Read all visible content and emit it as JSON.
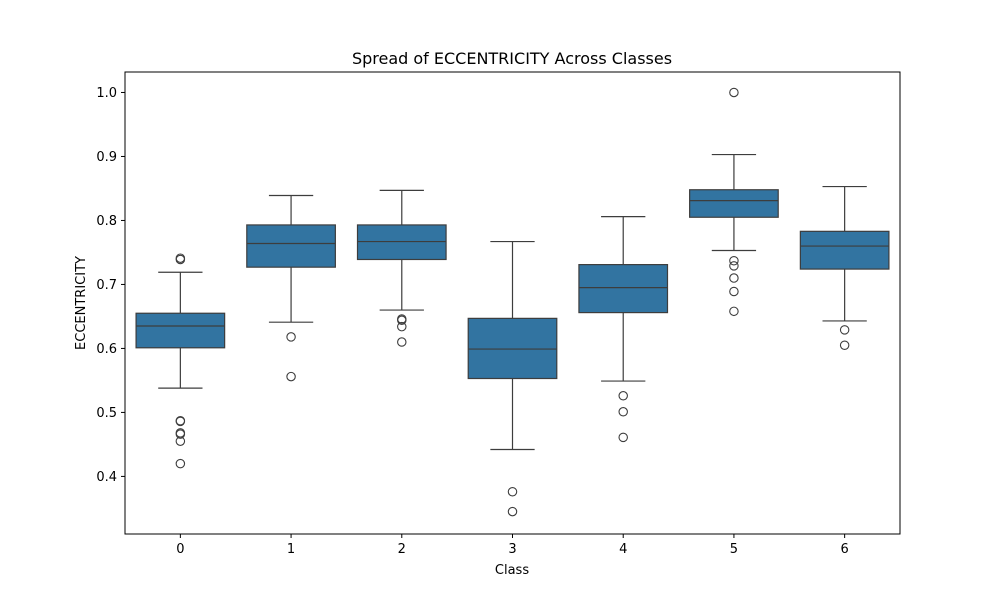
{
  "chart_data": {
    "type": "box",
    "title": "Spread of ECCENTRICITY Across Classes",
    "xlabel": "Class",
    "ylabel": "ECCENTRICITY",
    "categories": [
      "0",
      "1",
      "2",
      "3",
      "4",
      "5",
      "6"
    ],
    "y_ticks": [
      "0.4",
      "0.5",
      "0.6",
      "0.7",
      "0.8",
      "0.9",
      "1.0"
    ],
    "ylim": [
      0.31,
      1.032
    ],
    "grid": false,
    "box_color": "#3274a1",
    "line_color": "#3d3d3d",
    "boxes": [
      {
        "category": "0",
        "whisker_low": 0.538,
        "q1": 0.601,
        "median": 0.635,
        "q3": 0.655,
        "whisker_high": 0.719,
        "outliers": [
          0.739,
          0.741,
          0.487,
          0.486,
          0.468,
          0.466,
          0.455,
          0.42
        ]
      },
      {
        "category": "1",
        "whisker_low": 0.641,
        "q1": 0.727,
        "median": 0.764,
        "q3": 0.793,
        "whisker_high": 0.839,
        "outliers": [
          0.618,
          0.556
        ]
      },
      {
        "category": "2",
        "whisker_low": 0.66,
        "q1": 0.739,
        "median": 0.767,
        "q3": 0.793,
        "whisker_high": 0.847,
        "outliers": [
          0.646,
          0.644,
          0.634,
          0.61
        ]
      },
      {
        "category": "3",
        "whisker_low": 0.442,
        "q1": 0.553,
        "median": 0.599,
        "q3": 0.647,
        "whisker_high": 0.767,
        "outliers": [
          0.376,
          0.345
        ]
      },
      {
        "category": "4",
        "whisker_low": 0.549,
        "q1": 0.656,
        "median": 0.695,
        "q3": 0.731,
        "whisker_high": 0.806,
        "outliers": [
          0.526,
          0.501,
          0.461
        ]
      },
      {
        "category": "5",
        "whisker_low": 0.753,
        "q1": 0.805,
        "median": 0.831,
        "q3": 0.848,
        "whisker_high": 0.903,
        "outliers": [
          1.0,
          0.737,
          0.729,
          0.71,
          0.689,
          0.658
        ]
      },
      {
        "category": "6",
        "whisker_low": 0.643,
        "q1": 0.724,
        "median": 0.76,
        "q3": 0.783,
        "whisker_high": 0.853,
        "outliers": [
          0.629,
          0.605
        ]
      }
    ]
  }
}
